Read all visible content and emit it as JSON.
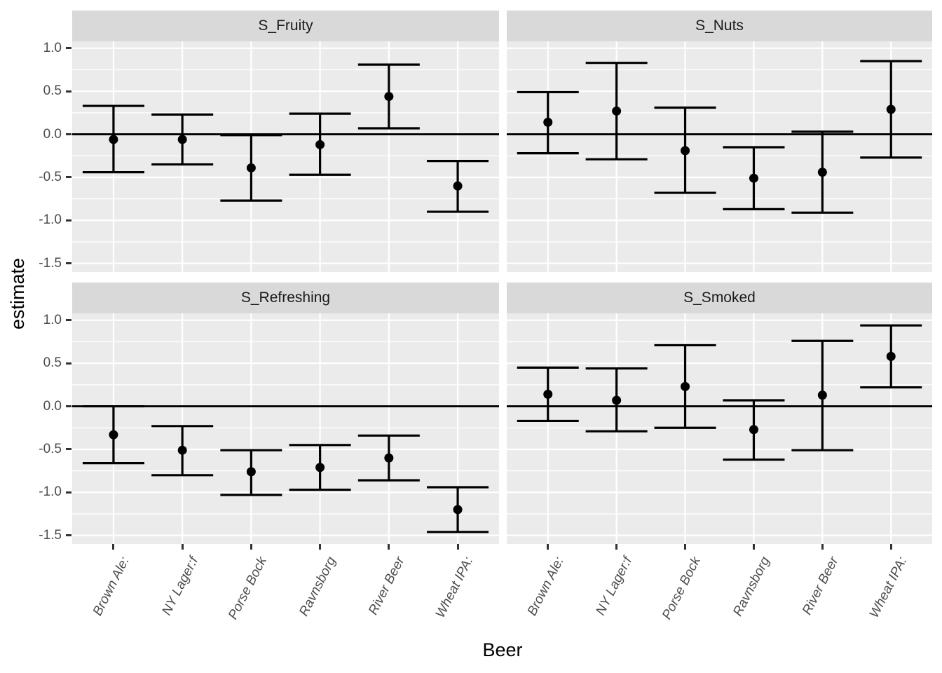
{
  "colors": {
    "background": "#FFFFFF",
    "panel_background": "#EBEBEB",
    "strip_background": "#D9D9D9",
    "gridline": "#FFFFFF",
    "data_color": "#000000",
    "reference_line": "#000000",
    "axis_text": "#4D4D4D",
    "strip_text": "#1A1A1A",
    "axis_title": "#000000",
    "tick_mark": "#333333"
  },
  "chart_data": {
    "type": "errorbar",
    "title": "",
    "xlabel": "Beer",
    "ylabel": "estimate",
    "facet_layout": "2x2",
    "legend": "none",
    "grid": true,
    "categories": [
      "Brown Ale:",
      "NY Lager:f",
      "Porse Bock",
      "Ravnsborg",
      "River Beer",
      "Wheat IPA:"
    ],
    "yticks": [
      1.0,
      0.5,
      0.0,
      -0.5,
      -1.0,
      -1.5
    ],
    "ytick_labels": [
      "1.0",
      "0.5",
      "0.0",
      "-0.5",
      "-1.0",
      "-1.5"
    ],
    "yminor": [
      0.75,
      0.25,
      -0.25,
      -0.75,
      -1.25
    ],
    "ylim": [
      -1.6,
      1.08
    ],
    "reference_line_y": 0,
    "facets": [
      {
        "title": "S_Fruity",
        "estimates": [
          -0.06,
          -0.06,
          -0.39,
          -0.12,
          0.44,
          -0.6
        ],
        "lower": [
          -0.44,
          -0.35,
          -0.77,
          -0.47,
          0.07,
          -0.9
        ],
        "upper": [
          0.33,
          0.23,
          -0.01,
          0.24,
          0.81,
          -0.31
        ]
      },
      {
        "title": "S_Nuts",
        "estimates": [
          0.14,
          0.27,
          -0.19,
          -0.51,
          -0.44,
          0.29
        ],
        "lower": [
          -0.22,
          -0.29,
          -0.68,
          -0.87,
          -0.91,
          -0.27
        ],
        "upper": [
          0.49,
          0.83,
          0.31,
          -0.15,
          0.03,
          0.85
        ]
      },
      {
        "title": "S_Refreshing",
        "estimates": [
          -0.33,
          -0.51,
          -0.76,
          -0.71,
          -0.6,
          -1.2
        ],
        "lower": [
          -0.66,
          -0.8,
          -1.03,
          -0.97,
          -0.86,
          -1.46
        ],
        "upper": [
          0.0,
          -0.23,
          -0.51,
          -0.45,
          -0.34,
          -0.94
        ]
      },
      {
        "title": "S_Smoked",
        "estimates": [
          0.14,
          0.07,
          0.23,
          -0.27,
          0.13,
          0.58
        ],
        "lower": [
          -0.17,
          -0.29,
          -0.25,
          -0.62,
          -0.51,
          0.22
        ],
        "upper": [
          0.45,
          0.44,
          0.71,
          0.07,
          0.76,
          0.94
        ]
      }
    ]
  }
}
